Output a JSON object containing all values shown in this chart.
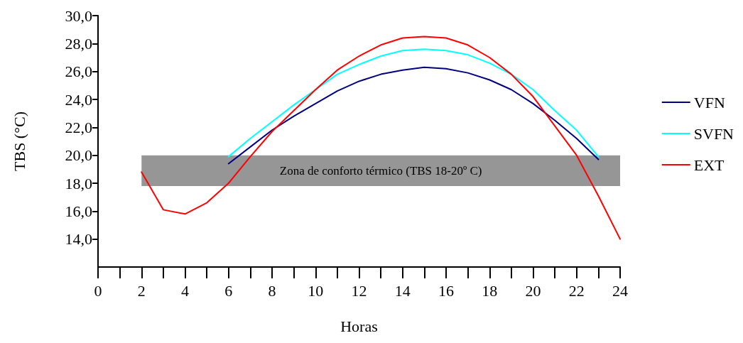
{
  "chart_data": {
    "type": "line",
    "xlabel": "Horas",
    "ylabel": "TBS (°C)",
    "x": [
      2,
      3,
      4,
      5,
      6,
      7,
      8,
      9,
      10,
      11,
      12,
      13,
      14,
      15,
      16,
      17,
      18,
      19,
      20,
      21,
      22,
      23,
      24
    ],
    "series": [
      {
        "name": "VFN",
        "color": "#000080",
        "values": [
          null,
          null,
          null,
          null,
          19.4,
          20.6,
          21.8,
          22.8,
          23.7,
          24.6,
          25.3,
          25.8,
          26.1,
          26.3,
          26.2,
          25.9,
          25.4,
          24.7,
          23.7,
          22.5,
          21.2,
          19.7,
          null
        ]
      },
      {
        "name": "SVFN",
        "color": "#00ffff",
        "values": [
          null,
          null,
          null,
          null,
          19.9,
          21.2,
          22.4,
          23.6,
          24.7,
          25.8,
          26.5,
          27.1,
          27.5,
          27.6,
          27.5,
          27.2,
          26.6,
          25.8,
          24.7,
          23.2,
          21.8,
          19.9,
          null
        ]
      },
      {
        "name": "EXT",
        "color": "#ff0000",
        "values": [
          18.8,
          16.1,
          15.8,
          16.6,
          18.0,
          19.9,
          21.7,
          23.2,
          24.7,
          26.1,
          27.1,
          27.9,
          28.4,
          28.5,
          28.4,
          27.9,
          27.0,
          25.8,
          24.2,
          22.1,
          20.0,
          17.1,
          14.0
        ]
      }
    ],
    "xlim": [
      0,
      24
    ],
    "xticks": [
      0,
      2,
      4,
      6,
      8,
      10,
      12,
      14,
      16,
      18,
      20,
      22,
      24
    ],
    "ylim": [
      12,
      30
    ],
    "yticks": [
      {
        "value": 14,
        "label": "14,0"
      },
      {
        "value": 16,
        "label": "16,0"
      },
      {
        "value": 18,
        "label": "18,0"
      },
      {
        "value": 20,
        "label": "20,0"
      },
      {
        "value": 22,
        "label": "22,0"
      },
      {
        "value": 24,
        "label": "24,0"
      },
      {
        "value": 26,
        "label": "26,0"
      },
      {
        "value": 28,
        "label": "28,0"
      },
      {
        "value": 30,
        "label": "30,0"
      }
    ],
    "bands": [
      {
        "axis": "y",
        "from": 17.8,
        "to": 20,
        "label": "Zona de conforto térmico (TBS 18-20º C)",
        "color": "#969696"
      }
    ],
    "legend": "right",
    "grid": false,
    "marker": "none",
    "line_style": "solid"
  }
}
